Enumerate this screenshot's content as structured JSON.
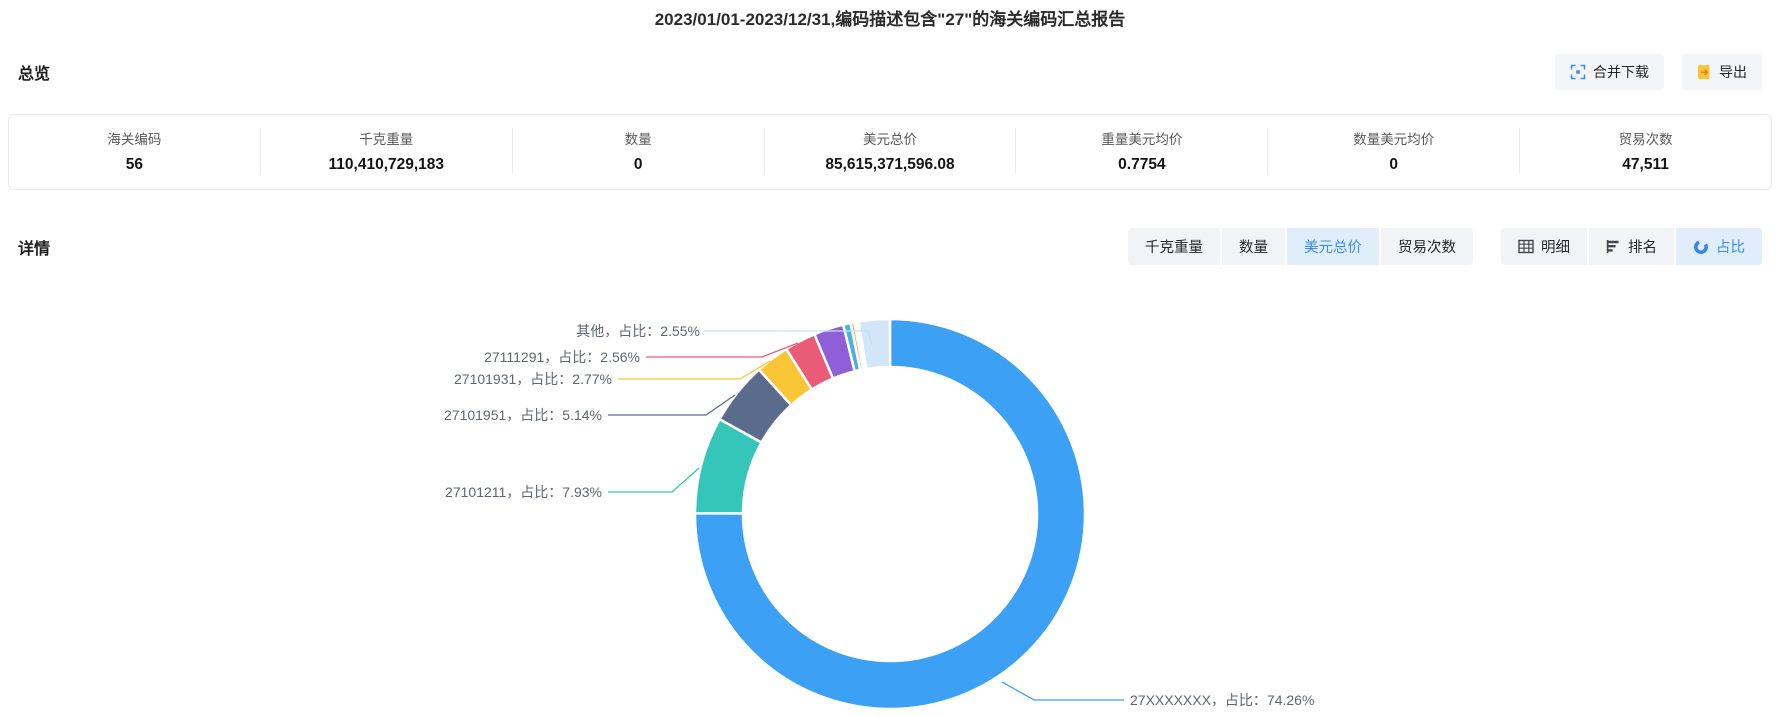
{
  "page": {
    "title": "2023/01/01-2023/12/31,编码描述包含\"27\"的海关编码汇总报告"
  },
  "overview": {
    "heading": "总览",
    "actions": {
      "merge_download": "合并下载",
      "export": "导出"
    },
    "stats": [
      {
        "label": "海关编码",
        "value": "56"
      },
      {
        "label": "千克重量",
        "value": "110,410,729,183"
      },
      {
        "label": "数量",
        "value": "0"
      },
      {
        "label": "美元总价",
        "value": "85,615,371,596.08"
      },
      {
        "label": "重量美元均价",
        "value": "0.7754"
      },
      {
        "label": "数量美元均价",
        "value": "0"
      },
      {
        "label": "贸易次数",
        "value": "47,511"
      }
    ]
  },
  "details": {
    "heading": "详情",
    "metric_tabs": [
      {
        "label": "千克重量",
        "active": false
      },
      {
        "label": "数量",
        "active": false
      },
      {
        "label": "美元总价",
        "active": true
      },
      {
        "label": "贸易次数",
        "active": false
      }
    ],
    "view_tabs": [
      {
        "label": "明细",
        "icon": "table-icon",
        "active": false
      },
      {
        "label": "排名",
        "icon": "ranking-icon",
        "active": false
      },
      {
        "label": "占比",
        "icon": "pie-icon",
        "active": true
      }
    ]
  },
  "chart_data": {
    "type": "pie",
    "title": "美元总价占比 (donut)",
    "legend_position": "none",
    "slices": [
      {
        "code": "27XXXXXXX",
        "share_pct": 74.26,
        "color": "#3CA1F4",
        "labeled": true,
        "label_text": "27XXXXXXX，占比：74.26%"
      },
      {
        "code": "27101211",
        "share_pct": 7.93,
        "color": "#35C6B9",
        "labeled": true,
        "label_text": "27101211，占比：7.93%"
      },
      {
        "code": "27101951",
        "share_pct": 5.14,
        "color": "#5A6B8C",
        "labeled": true,
        "label_text": "27101951，占比：5.14%"
      },
      {
        "code": "27101931",
        "share_pct": 2.77,
        "color": "#F8C636",
        "labeled": true,
        "label_text": "27101931，占比：2.77%"
      },
      {
        "code": "27111291",
        "share_pct": 2.56,
        "color": "#EA5B77",
        "labeled": true,
        "label_text": "27111291，占比：2.56%"
      },
      {
        "code": "unlabeled-1",
        "share_pct": 2.45,
        "color": "#8F5FD8",
        "labeled": false,
        "estimated": true
      },
      {
        "code": "unlabeled-2",
        "share_pct": 0.62,
        "color": "#47B5DB",
        "labeled": false,
        "estimated": true
      },
      {
        "code": "unlabeled-3",
        "share_pct": 0.3,
        "color": "#F0A85E",
        "labeled": false,
        "estimated": true
      },
      {
        "code": "unlabeled-4",
        "share_pct": 0.2,
        "color": "#E89A8A",
        "labeled": false,
        "estimated": true
      },
      {
        "code": "unlabeled-5",
        "share_pct": 0.15,
        "color": "#89CBBB",
        "labeled": false,
        "estimated": true
      },
      {
        "code": "其他",
        "share_pct": 2.55,
        "color": "#D3E5F8",
        "labeled": true,
        "label_text": "其他，占比：2.55%"
      }
    ]
  },
  "colors": {
    "accent_blue": "#3B8DF2",
    "tab_active_bg": "#E0EEFC",
    "button_bg": "#F4F5F7",
    "export_icon_yellow": "#F8C53C",
    "export_icon_orange": "#E8830C",
    "label_gray": "#5F6672"
  }
}
